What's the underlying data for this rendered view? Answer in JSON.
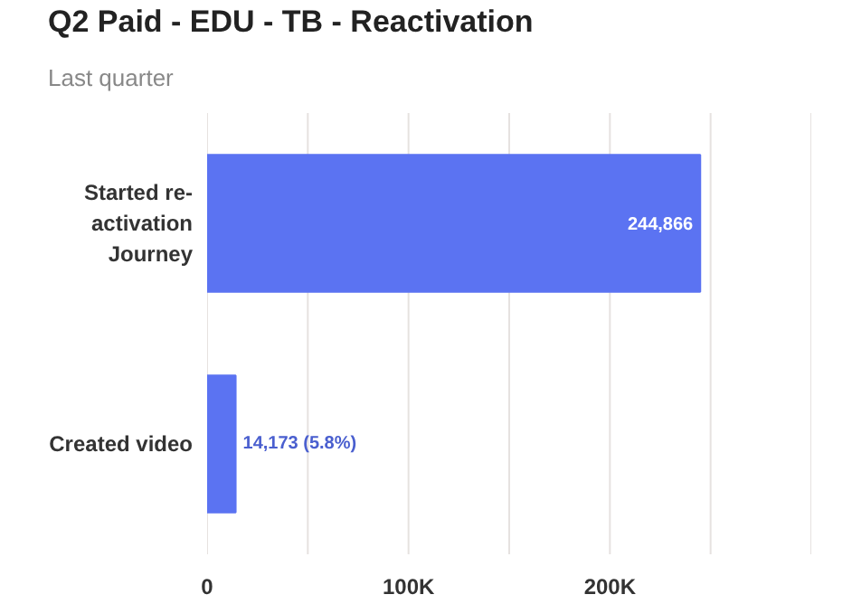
{
  "chart_data": {
    "type": "bar",
    "orientation": "horizontal",
    "title": "Q2 Paid - EDU - TB - Reactivation",
    "subtitle": "Last quarter",
    "categories": [
      "Started re-activation Journey",
      "Created video"
    ],
    "values": [
      244866,
      14173
    ],
    "value_labels": [
      "244,866",
      "14,173 (5.8%)"
    ],
    "color": "#5b73f2",
    "xlim": [
      0,
      300000
    ],
    "xticks": [
      0,
      {
        "value": 50000,
        "label": null
      },
      {
        "value": 100000,
        "label": "100K"
      },
      {
        "value": 150000,
        "label": null
      },
      {
        "value": 200000,
        "label": "200K"
      },
      {
        "value": 250000,
        "label": null
      },
      {
        "value": 300000,
        "label": null
      }
    ],
    "grid": "x"
  }
}
